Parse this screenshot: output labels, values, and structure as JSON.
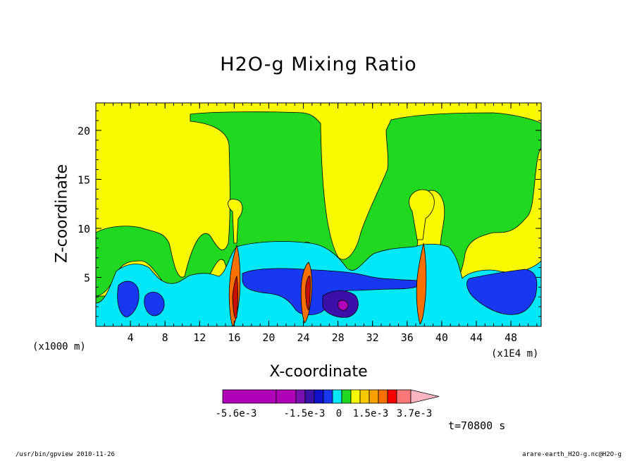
{
  "chart_data": {
    "type": "heatmap",
    "title": "H2O-g Mixing Ratio",
    "xlabel": "X-coordinate",
    "ylabel": "Z-coordinate",
    "x_unit": "(x1000 m)",
    "x_scale_note": "(x1E4 m)",
    "xlim": [
      0,
      51.5
    ],
    "ylim": [
      0,
      22.8
    ],
    "x_ticks": [
      "4",
      "8",
      "12",
      "16",
      "20",
      "24",
      "28",
      "32",
      "36",
      "40",
      "44",
      "48"
    ],
    "x_tick_values": [
      4,
      8,
      12,
      16,
      20,
      24,
      28,
      32,
      36,
      40,
      44,
      48
    ],
    "y_ticks": [
      "5",
      "10",
      "15",
      "20"
    ],
    "y_tick_values": [
      5,
      10,
      15,
      20
    ],
    "time_label": "t=70800 s",
    "colorbar": {
      "labels": [
        "-5.6e-3",
        "-1.5e-3",
        "0",
        "1.5e-3",
        "3.7e-3"
      ],
      "colors": [
        "#b000b8",
        "#b000b8",
        "#7a10b0",
        "#3a10a8",
        "#1010c8",
        "#1838f0",
        "#00e8f8",
        "#20d820",
        "#f8f800",
        "#f8c800",
        "#f8a000",
        "#f87000",
        "#f80000",
        "#f87878",
        "#f8b4c0"
      ]
    },
    "fields": [
      {
        "name": "yellow",
        "color": "#f8f800"
      },
      {
        "name": "green",
        "color": "#20d820"
      },
      {
        "name": "cyan",
        "color": "#00e8f8"
      },
      {
        "name": "blue",
        "color": "#1838f0"
      },
      {
        "name": "navy",
        "color": "#1010c8"
      },
      {
        "name": "purple",
        "color": "#3a10a8"
      },
      {
        "name": "magenta",
        "color": "#b000b8"
      },
      {
        "name": "orange",
        "color": "#f87000"
      },
      {
        "name": "red",
        "color": "#c81000"
      }
    ]
  },
  "footer": {
    "left": "/usr/bin/gpview  2010-11-26",
    "right": "arare-earth_H2O-g.nc@H2O-g"
  }
}
